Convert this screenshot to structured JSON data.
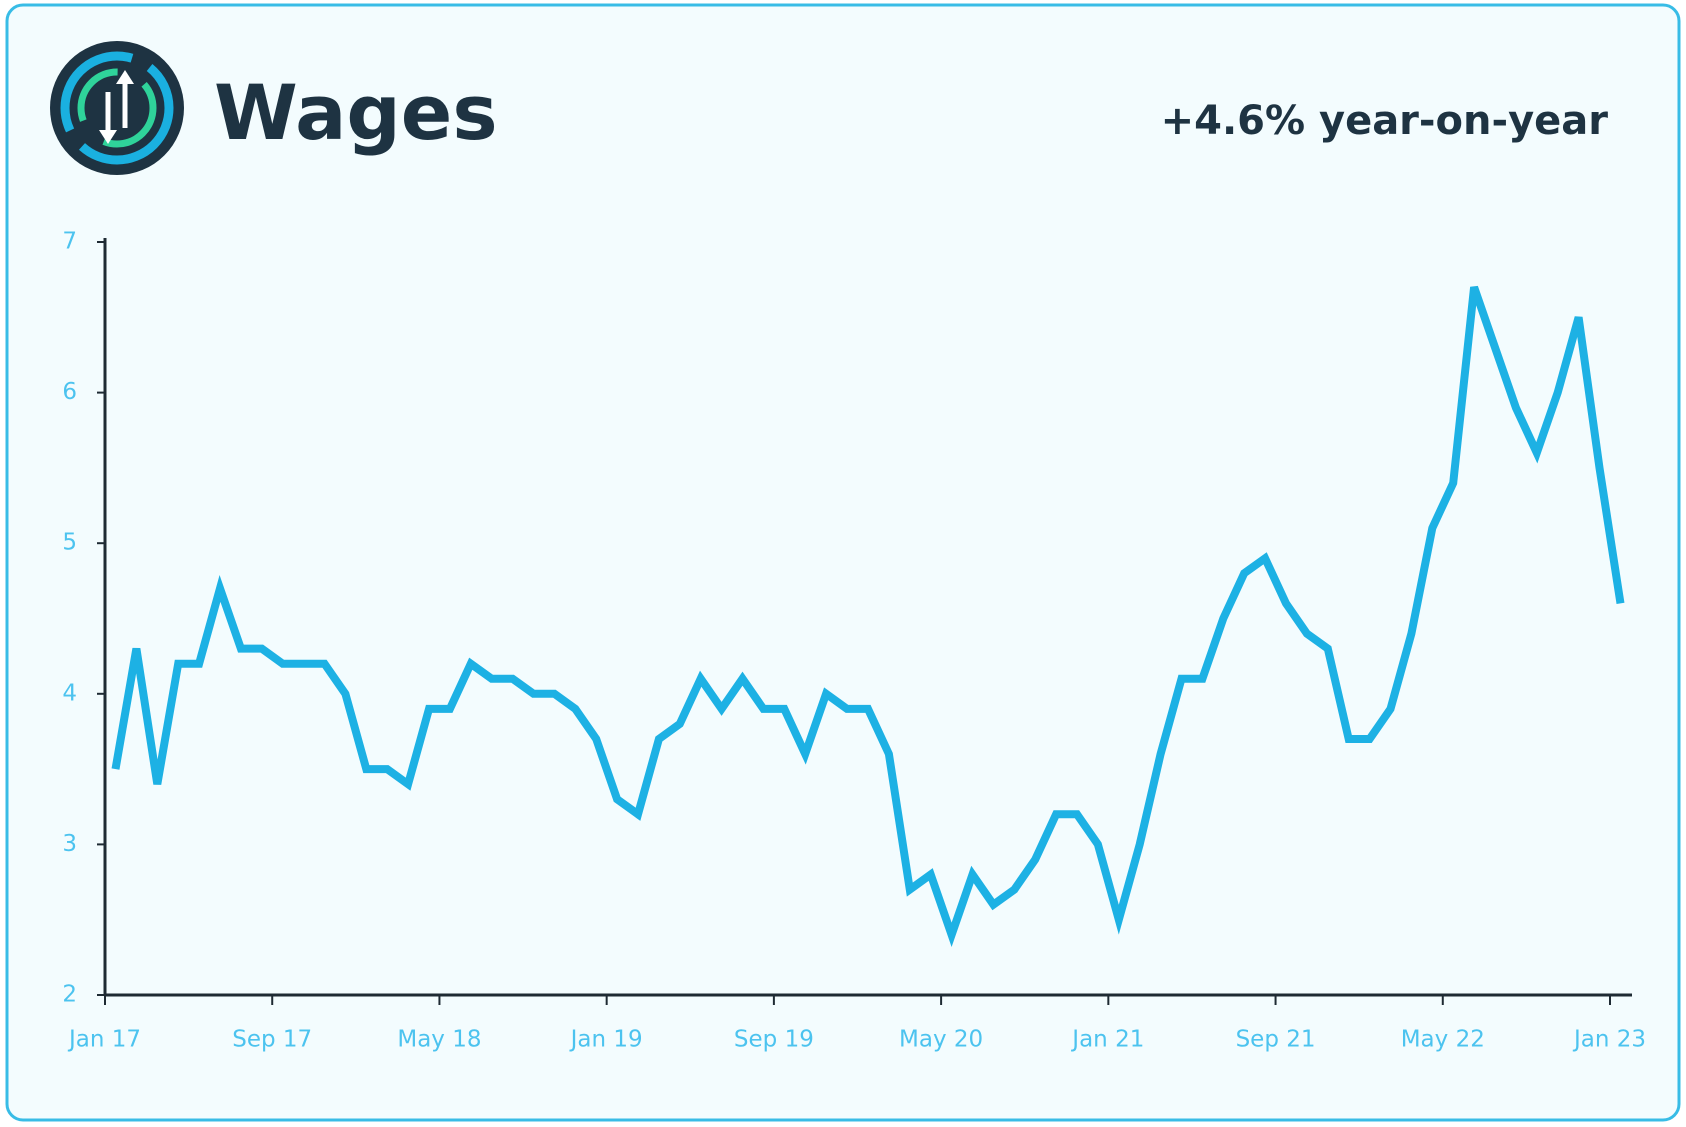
{
  "chart_data": {
    "type": "line",
    "title": "Wages",
    "annotation": "+4.6% year-on-year",
    "categories": [
      "Jan 17",
      null,
      null,
      null,
      null,
      null,
      null,
      null,
      "Sep 17",
      null,
      null,
      null,
      null,
      null,
      null,
      null,
      "May 18",
      null,
      null,
      null,
      null,
      null,
      null,
      null,
      "Jan 19",
      null,
      null,
      null,
      null,
      null,
      null,
      null,
      "Sep 19",
      null,
      null,
      null,
      null,
      null,
      null,
      null,
      "May 20",
      null,
      null,
      null,
      null,
      null,
      null,
      null,
      "Jan 21",
      null,
      null,
      null,
      null,
      null,
      null,
      null,
      "Sep 21",
      null,
      null,
      null,
      null,
      null,
      null,
      null,
      "May 22",
      null,
      null,
      null,
      null,
      null,
      null,
      null,
      "Jan 23"
    ],
    "values": [
      3.5,
      4.3,
      3.4,
      4.2,
      4.2,
      4.7,
      4.3,
      4.3,
      4.2,
      4.2,
      4.2,
      4.0,
      3.5,
      3.5,
      3.4,
      3.9,
      3.9,
      4.2,
      4.1,
      4.1,
      4.0,
      4.0,
      3.9,
      3.7,
      3.3,
      3.2,
      3.7,
      3.8,
      4.1,
      3.9,
      4.1,
      3.9,
      3.9,
      3.6,
      4.0,
      3.9,
      3.9,
      3.6,
      2.7,
      2.8,
      2.4,
      2.8,
      2.6,
      2.7,
      2.9,
      3.2,
      3.2,
      3.0,
      2.5,
      3.0,
      3.6,
      4.1,
      4.1,
      4.5,
      4.8,
      4.9,
      4.6,
      4.4,
      4.3,
      3.7,
      3.7,
      3.9,
      4.4,
      5.1,
      5.4,
      6.7,
      6.3,
      5.9,
      5.6,
      6.0,
      6.5,
      5.5,
      4.6
    ],
    "color": "#1db1e4",
    "ylim": [
      2,
      7
    ],
    "yticks": [
      2,
      3,
      4,
      5,
      6,
      7
    ]
  }
}
